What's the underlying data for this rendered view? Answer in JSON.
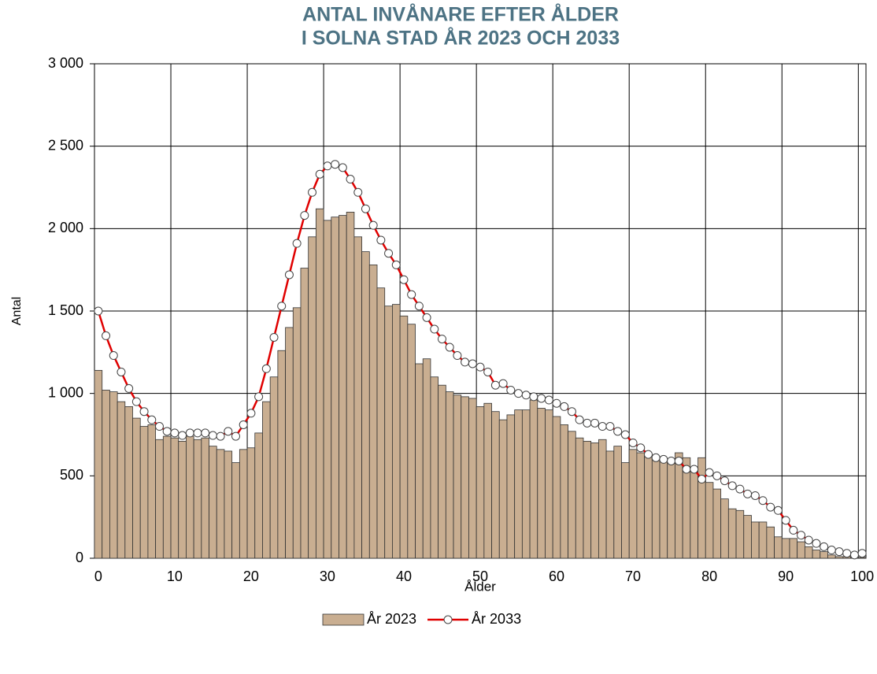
{
  "chart_data": {
    "type": "bar_line",
    "title": [
      "ANTAL INVÅNARE EFTER ÅLDER",
      "I SOLNA STAD ÅR 2023 OCH 2033"
    ],
    "x_label": "Ålder",
    "y_label": "Antal",
    "categories": [
      0,
      null,
      null,
      null,
      null,
      null,
      null,
      null,
      null,
      null,
      10,
      null,
      null,
      null,
      null,
      null,
      null,
      null,
      null,
      null,
      20,
      null,
      null,
      null,
      null,
      null,
      null,
      null,
      null,
      null,
      30,
      null,
      null,
      null,
      null,
      null,
      null,
      null,
      null,
      null,
      40,
      null,
      null,
      null,
      null,
      null,
      null,
      null,
      null,
      null,
      50,
      null,
      null,
      null,
      null,
      null,
      null,
      null,
      null,
      null,
      60,
      null,
      null,
      null,
      null,
      null,
      null,
      null,
      null,
      null,
      70,
      null,
      null,
      null,
      null,
      null,
      null,
      null,
      null,
      null,
      80,
      null,
      null,
      null,
      null,
      null,
      null,
      null,
      null,
      null,
      90,
      null,
      null,
      null,
      null,
      null,
      null,
      null,
      null,
      null,
      100
    ],
    "series": [
      {
        "name": "År 2023",
        "type": "bar",
        "color": "#c9ae91",
        "values": [
          1140,
          1020,
          1010,
          950,
          920,
          850,
          800,
          810,
          720,
          740,
          730,
          710,
          740,
          720,
          730,
          680,
          660,
          650,
          580,
          660,
          670,
          760,
          950,
          1100,
          1260,
          1400,
          1520,
          1760,
          1950,
          2120,
          2050,
          2070,
          2080,
          2100,
          1950,
          1860,
          1780,
          1640,
          1530,
          1540,
          1470,
          1420,
          1180,
          1210,
          1100,
          1050,
          1010,
          990,
          980,
          970,
          920,
          940,
          890,
          840,
          870,
          900,
          900,
          960,
          910,
          900,
          860,
          810,
          770,
          730,
          710,
          700,
          720,
          650,
          680,
          580,
          660,
          640,
          620,
          610,
          600,
          590,
          640,
          610,
          540,
          610,
          460,
          420,
          360,
          300,
          290,
          260,
          220,
          220,
          190,
          130,
          120,
          120,
          100,
          70,
          50,
          40,
          20,
          10,
          10,
          5,
          5
        ]
      },
      {
        "name": "År 2033",
        "type": "line",
        "color": "#e00000",
        "values": [
          1500,
          1350,
          1230,
          1130,
          1030,
          950,
          890,
          840,
          800,
          770,
          760,
          745,
          760,
          760,
          760,
          745,
          740,
          770,
          740,
          810,
          880,
          980,
          1150,
          1340,
          1530,
          1720,
          1910,
          2080,
          2220,
          2330,
          2380,
          2390,
          2370,
          2300,
          2220,
          2120,
          2020,
          1930,
          1850,
          1780,
          1690,
          1600,
          1530,
          1460,
          1390,
          1330,
          1280,
          1230,
          1190,
          1180,
          1160,
          1130,
          1050,
          1060,
          1020,
          1000,
          990,
          980,
          970,
          960,
          940,
          920,
          890,
          840,
          820,
          820,
          800,
          800,
          770,
          750,
          700,
          670,
          630,
          610,
          600,
          590,
          590,
          540,
          540,
          480,
          520,
          500,
          470,
          440,
          420,
          390,
          380,
          350,
          310,
          290,
          230,
          170,
          140,
          110,
          90,
          70,
          50,
          40,
          30,
          20,
          30
        ]
      }
    ],
    "ylim": [
      0,
      3000
    ],
    "yticks": [
      0,
      500,
      {
        "value": 1000,
        "label": "1 000"
      },
      {
        "value": 1500,
        "label": "1 500"
      },
      {
        "value": 2000,
        "label": "2 000"
      },
      {
        "value": 2500,
        "label": "2 500"
      },
      {
        "value": 3000,
        "label": "3 000"
      }
    ],
    "grid": true,
    "legend": "bottom"
  }
}
